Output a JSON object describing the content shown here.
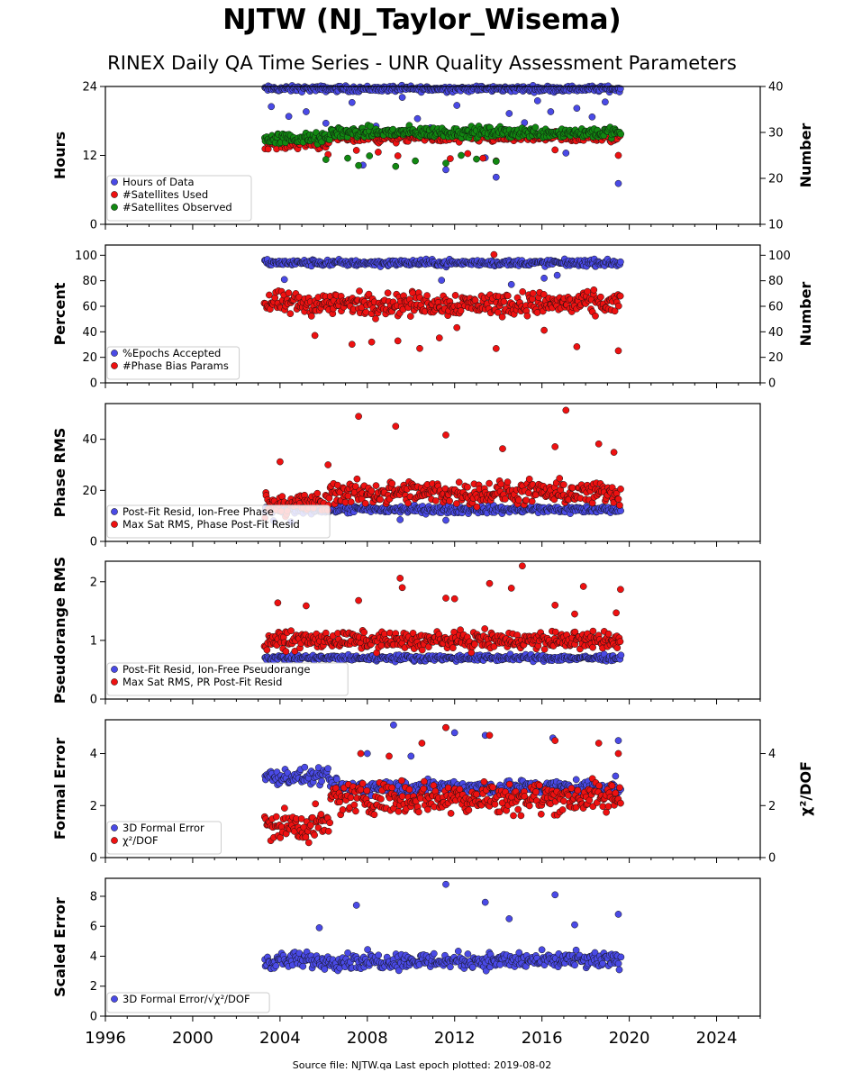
{
  "header": {
    "title": "NJTW (NJ_Taylor_Wisema)",
    "subtitle": "RINEX Daily QA Time Series - UNR Quality Assessment Parameters"
  },
  "footer": {
    "text": "Source file: NJTW.qa Last epoch plotted: 2019-08-02"
  },
  "colors": {
    "blue": "#4a4ae6",
    "red": "#ee1111",
    "green": "#118811"
  },
  "chart_data": [
    {
      "type": "scatter",
      "ylabel": "Hours",
      "ylim": [
        0,
        24
      ],
      "yticks": [
        "0",
        "12",
        "24"
      ],
      "y2label": "Number",
      "y2lim": [
        10,
        40
      ],
      "y2ticks": [
        "10",
        "20",
        "30",
        "40"
      ],
      "xlim": [
        1996,
        2026
      ],
      "legend": [
        "Hours of Data",
        "#Satellites Used",
        "#Satellites Observed"
      ],
      "legend_placement": "lower-left",
      "series": [
        {
          "name": "Hours of Data",
          "color": "blue",
          "axis": "left",
          "span": [
            2003.3,
            2019.6
          ],
          "base": 23.6,
          "jitter": 0.5,
          "outliers": [
            [
              2003.6,
              20.5
            ],
            [
              2004.4,
              18.8
            ],
            [
              2005.2,
              19.6
            ],
            [
              2006.1,
              17.6
            ],
            [
              2006.6,
              16.5
            ],
            [
              2007.3,
              21.2
            ],
            [
              2007.8,
              10.3
            ],
            [
              2008.4,
              17.1
            ],
            [
              2009.1,
              15.7
            ],
            [
              2009.6,
              22.1
            ],
            [
              2010.3,
              18.4
            ],
            [
              2010.9,
              16.8
            ],
            [
              2011.6,
              9.5
            ],
            [
              2012.1,
              20.7
            ],
            [
              2012.8,
              14.9
            ],
            [
              2013.4,
              11.6
            ],
            [
              2013.9,
              8.2
            ],
            [
              2014.5,
              19.3
            ],
            [
              2015.2,
              17.7
            ],
            [
              2015.8,
              21.5
            ],
            [
              2016.4,
              19.6
            ],
            [
              2017.1,
              12.4
            ],
            [
              2017.6,
              20.2
            ],
            [
              2018.3,
              18.7
            ],
            [
              2018.9,
              21.3
            ],
            [
              2019.5,
              7.1
            ],
            [
              2019.4,
              16.1
            ]
          ]
        },
        {
          "name": "#Satellites Used",
          "color": "red",
          "axis": "right",
          "span": [
            2003.3,
            2019.6
          ],
          "base": 29,
          "jitter": 1.2,
          "outliers": [
            [
              2006.2,
              25.2
            ],
            [
              2007.5,
              26.1
            ],
            [
              2008.5,
              25.7
            ],
            [
              2009.4,
              24.9
            ],
            [
              2011.8,
              24.3
            ],
            [
              2012.6,
              25.4
            ],
            [
              2013.3,
              24.4
            ],
            [
              2013.9,
              23.8
            ],
            [
              2016.6,
              26.2
            ],
            [
              2019.5,
              25.0
            ]
          ]
        },
        {
          "name": "#Satellites Observed",
          "color": "green",
          "axis": "right",
          "span": [
            2003.3,
            2019.6
          ],
          "base": 30,
          "jitter": 1.2,
          "outliers": [
            [
              2006.1,
              24.1
            ],
            [
              2007.1,
              24.4
            ],
            [
              2007.6,
              22.8
            ],
            [
              2008.1,
              24.9
            ],
            [
              2009.3,
              22.6
            ],
            [
              2010.2,
              23.8
            ],
            [
              2011.6,
              23.3
            ],
            [
              2012.3,
              25.0
            ],
            [
              2013.0,
              24.2
            ],
            [
              2013.9,
              23.7
            ]
          ]
        }
      ]
    },
    {
      "type": "scatter",
      "ylabel": "Percent",
      "ylim": [
        0,
        108
      ],
      "yticks": [
        "0",
        "20",
        "40",
        "60",
        "80",
        "100"
      ],
      "y2label": "Number",
      "y2lim": [
        0,
        108
      ],
      "y2ticks": [
        "0",
        "20",
        "40",
        "60",
        "80",
        "100"
      ],
      "xlim": [
        1996,
        2026
      ],
      "legend": [
        "%Epochs Accepted",
        "#Phase Bias Params"
      ],
      "legend_placement": "lower-left",
      "series": [
        {
          "name": "%Epochs Accepted",
          "color": "blue",
          "axis": "left",
          "span": [
            2003.3,
            2019.6
          ],
          "base": 94,
          "jitter": 2.5,
          "outliers": [
            [
              2004.2,
              81.0
            ],
            [
              2011.4,
              80.4
            ],
            [
              2014.6,
              77.1
            ],
            [
              2016.1,
              82.0
            ],
            [
              2016.7,
              84.3
            ]
          ]
        },
        {
          "name": "#Phase Bias Params",
          "color": "red",
          "axis": "right",
          "span": [
            2003.3,
            2019.6
          ],
          "base": 62,
          "jitter": 9,
          "outliers": [
            [
              2005.6,
              37.1
            ],
            [
              2007.3,
              30.2
            ],
            [
              2008.2,
              32.0
            ],
            [
              2009.4,
              32.9
            ],
            [
              2010.4,
              27.0
            ],
            [
              2011.3,
              35.2
            ],
            [
              2012.1,
              43.3
            ],
            [
              2013.8,
              100.5
            ],
            [
              2013.9,
              26.9
            ],
            [
              2016.1,
              41.2
            ],
            [
              2017.6,
              28.3
            ],
            [
              2019.5,
              25.1
            ]
          ]
        }
      ]
    },
    {
      "type": "scatter",
      "ylabel": "Phase RMS",
      "ylim": [
        0,
        54
      ],
      "yticks": [
        "0",
        "20",
        "40"
      ],
      "xlim": [
        1996,
        2026
      ],
      "legend": [
        "Post-Fit Resid, Ion-Free Phase",
        "Max Sat RMS, Phase Post-Fit Resid"
      ],
      "legend_placement": "lower-left",
      "series": [
        {
          "name": "Post-Fit Resid, Ion-Free Phase",
          "color": "blue",
          "axis": "left",
          "span": [
            2003.3,
            2019.6
          ],
          "base": 12.5,
          "jitter": 1.5,
          "outliers": [
            [
              2003.7,
              8.1
            ],
            [
              2004.5,
              7.7
            ],
            [
              2009.5,
              8.5
            ],
            [
              2011.6,
              8.3
            ]
          ]
        },
        {
          "name": "Max Sat RMS, Phase Post-Fit Resid",
          "color": "red",
          "axis": "left",
          "span": [
            2003.3,
            2019.6
          ],
          "base": 19,
          "jitter": 4.5,
          "outliers": [
            [
              2007.6,
              49.0
            ],
            [
              2009.3,
              45.1
            ],
            [
              2011.6,
              41.7
            ],
            [
              2014.2,
              36.3
            ],
            [
              2016.6,
              37.1
            ],
            [
              2017.1,
              51.4
            ],
            [
              2018.6,
              38.2
            ],
            [
              2019.3,
              34.9
            ],
            [
              2004.0,
              31.2
            ],
            [
              2006.2,
              30.0
            ]
          ]
        }
      ]
    },
    {
      "type": "scatter",
      "ylabel": "Pseudorange RMS",
      "ylim": [
        0,
        2.35
      ],
      "yticks": [
        "0",
        "1",
        "2"
      ],
      "xlim": [
        1996,
        2026
      ],
      "legend": [
        "Post-Fit Resid, Ion-Free Pseudorange",
        "Max Sat RMS, PR Post-Fit Resid"
      ],
      "legend_placement": "lower-left",
      "series": [
        {
          "name": "Post-Fit Resid, Ion-Free Pseudorange",
          "color": "blue",
          "axis": "left",
          "span": [
            2003.3,
            2019.6
          ],
          "base": 0.7,
          "jitter": 0.05,
          "outliers": []
        },
        {
          "name": "Max Sat RMS, PR Post-Fit Resid",
          "color": "red",
          "axis": "left",
          "span": [
            2003.3,
            2019.6
          ],
          "base": 1.0,
          "jitter": 0.15,
          "outliers": [
            [
              2003.9,
              1.64
            ],
            [
              2005.2,
              1.59
            ],
            [
              2007.6,
              1.68
            ],
            [
              2009.5,
              2.06
            ],
            [
              2009.6,
              1.9
            ],
            [
              2011.6,
              1.72
            ],
            [
              2012.0,
              1.71
            ],
            [
              2013.6,
              1.97
            ],
            [
              2014.6,
              1.89
            ],
            [
              2015.1,
              2.27
            ],
            [
              2016.6,
              1.6
            ],
            [
              2017.5,
              1.45
            ],
            [
              2017.9,
              1.92
            ],
            [
              2019.4,
              1.47
            ],
            [
              2019.6,
              1.87
            ]
          ]
        }
      ]
    },
    {
      "type": "scatter",
      "ylabel": "Formal Error",
      "ylim": [
        0,
        5.3
      ],
      "yticks": [
        "0",
        "2",
        "4"
      ],
      "y2label": "χ²/DOF",
      "y2lim": [
        0,
        5.3
      ],
      "y2ticks": [
        "0",
        "2",
        "4"
      ],
      "xlim": [
        1996,
        2026
      ],
      "legend": [
        "3D Formal Error",
        "χ²/DOF"
      ],
      "legend_placement": "lower-left",
      "series": [
        {
          "name": "3D Formal Error",
          "color": "blue",
          "axis": "left",
          "span": [
            2003.3,
            2019.6
          ],
          "base": 2.7,
          "jitter": 0.3,
          "outliers": [
            [
              2009.2,
              5.1
            ],
            [
              2011.6,
              5.0
            ],
            [
              2012.0,
              4.8
            ],
            [
              2013.4,
              4.7
            ],
            [
              2016.5,
              4.6
            ],
            [
              2019.5,
              4.5
            ],
            [
              2008.0,
              4.0
            ],
            [
              2010.0,
              3.9
            ]
          ]
        },
        {
          "name": "χ²/DOF",
          "color": "red",
          "axis": "right",
          "span": [
            2003.3,
            2019.6
          ],
          "base": 2.3,
          "jitter": 0.6,
          "outliers": [
            [
              2007.7,
              4.0
            ],
            [
              2009.0,
              3.9
            ],
            [
              2010.5,
              4.4
            ],
            [
              2011.6,
              5.0
            ],
            [
              2013.6,
              4.7
            ],
            [
              2016.6,
              4.5
            ],
            [
              2018.6,
              4.4
            ],
            [
              2019.5,
              4.0
            ]
          ]
        }
      ]
    },
    {
      "type": "scatter",
      "ylabel": "Scaled Error",
      "ylim": [
        0,
        9.2
      ],
      "yticks": [
        "0",
        "2",
        "4",
        "6",
        "8"
      ],
      "xlim": [
        1996,
        2026
      ],
      "legend": [
        "3D Formal Error/√χ²/DOF"
      ],
      "legend_placement": "lower-left",
      "series": [
        {
          "name": "3D Formal Error/√χ²/DOF",
          "color": "blue",
          "axis": "left",
          "span": [
            2003.3,
            2019.6
          ],
          "base": 3.7,
          "jitter": 0.55,
          "outliers": [
            [
              2007.5,
              7.4
            ],
            [
              2011.6,
              8.8
            ],
            [
              2013.4,
              7.6
            ],
            [
              2016.6,
              8.1
            ],
            [
              2019.5,
              6.8
            ],
            [
              2005.8,
              5.9
            ],
            [
              2014.5,
              6.5
            ],
            [
              2017.5,
              6.1
            ]
          ]
        }
      ]
    }
  ],
  "xaxis": {
    "min": 1996,
    "max": 2026,
    "ticks": [
      "1996",
      "2000",
      "2004",
      "2008",
      "2012",
      "2016",
      "2020",
      "2024"
    ]
  }
}
